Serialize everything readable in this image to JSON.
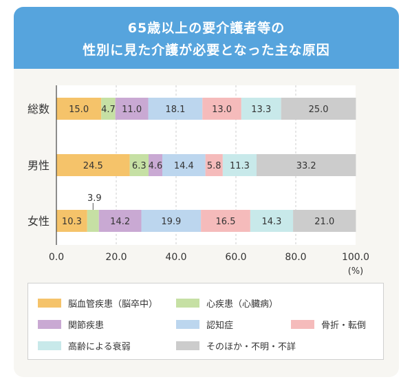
{
  "header": {
    "title_line1": "65歳以上の要介護者等の",
    "title_line2": "性別に見た介護が必要となった主な原因"
  },
  "chart_data": {
    "type": "bar",
    "orientation": "horizontal",
    "stacked": true,
    "categories": [
      "総数",
      "男性",
      "女性"
    ],
    "series": [
      {
        "name": "脳血管疾患（脳卒中）",
        "values": [
          15.0,
          24.5,
          10.3
        ],
        "color": "#f5c36a"
      },
      {
        "name": "心疾患（心臓病）",
        "values": [
          4.7,
          6.3,
          3.9
        ],
        "color": "#c6e0a4"
      },
      {
        "name": "関節疾患",
        "values": [
          11.0,
          4.6,
          14.2
        ],
        "color": "#c9a9d3"
      },
      {
        "name": "認知症",
        "values": [
          18.1,
          14.4,
          19.9
        ],
        "color": "#bcd6ee"
      },
      {
        "name": "骨折・転倒",
        "values": [
          13.0,
          5.8,
          16.5
        ],
        "color": "#f5bbbb"
      },
      {
        "name": "高齢による衰弱",
        "values": [
          13.3,
          11.3,
          14.3
        ],
        "color": "#c8e9ea"
      },
      {
        "name": "そのほか・不明・不詳",
        "values": [
          25.0,
          33.2,
          21.0
        ],
        "color": "#cccccc"
      }
    ],
    "data_labels": [
      [
        "15.0",
        "4.7",
        "11.0",
        "18.1",
        "13.0",
        "13.3",
        "25.0"
      ],
      [
        "24.5",
        "6.3",
        "4.6",
        "14.4",
        "5.8",
        "11.3",
        "33.2"
      ],
      [
        "10.3",
        "3.9",
        "14.2",
        "19.9",
        "16.5",
        "14.3",
        "21.0"
      ]
    ],
    "callout_labels": [
      {
        "category": "女性",
        "series": "心疾患（心臓病）",
        "value": "3.9"
      }
    ],
    "xlim": [
      0,
      100
    ],
    "xticks": [
      "0.0",
      "20.0",
      "40.0",
      "60.0",
      "80.0",
      "100.0"
    ],
    "unit": "(%)",
    "grid": "vertical dashed",
    "legend_position": "bottom"
  }
}
